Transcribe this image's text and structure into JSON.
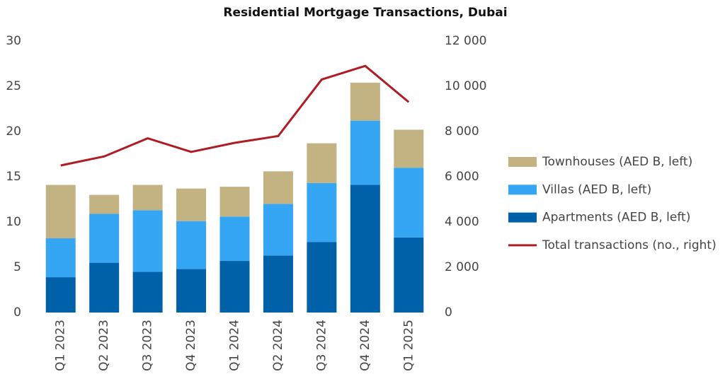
{
  "chart_data": {
    "type": "bar",
    "stacked": true,
    "title": "Residential Mortgage Transactions, Dubai",
    "categories": [
      "Q1 2023",
      "Q2 2023",
      "Q3 2023",
      "Q4 2023",
      "Q1 2024",
      "Q2 2024",
      "Q3 2024",
      "Q4 2024",
      "Q1 2025"
    ],
    "series": [
      {
        "name": "Apartments (AED B, left)",
        "type": "bar",
        "color": "#0061a8",
        "values": [
          3.9,
          5.5,
          4.5,
          4.8,
          5.7,
          6.3,
          7.8,
          14.1,
          8.3
        ]
      },
      {
        "name": "Villas (AED B, left)",
        "type": "bar",
        "color": "#34a6f4",
        "values": [
          4.3,
          5.4,
          6.8,
          5.3,
          4.9,
          5.7,
          6.5,
          7.1,
          7.7
        ]
      },
      {
        "name": "Townhouses (AED B, left)",
        "type": "bar",
        "color": "#c4b382",
        "values": [
          5.9,
          2.1,
          2.8,
          3.6,
          3.3,
          3.6,
          4.4,
          4.2,
          4.2
        ]
      },
      {
        "name": "Total transactions (no., right)",
        "type": "line",
        "axis": "y2",
        "color": "#b01c24",
        "values": [
          6500,
          6900,
          7700,
          7100,
          7500,
          7800,
          10300,
          10900,
          9300
        ]
      }
    ],
    "legend_order": [
      2,
      1,
      0,
      3
    ],
    "ylim": [
      0,
      30
    ],
    "yticks": [
      0,
      5,
      10,
      15,
      20,
      25,
      30
    ],
    "y2lim": [
      0,
      12000
    ],
    "y2ticks": [
      0,
      {
        "value": 2000,
        "label": "2 000"
      },
      {
        "value": 4000,
        "label": "4 000"
      },
      {
        "value": 6000,
        "label": "6 000"
      },
      {
        "value": 8000,
        "label": "8 000"
      },
      {
        "value": 10000,
        "label": "10 000"
      },
      {
        "value": 12000,
        "label": "12 000"
      }
    ],
    "grid": false
  }
}
